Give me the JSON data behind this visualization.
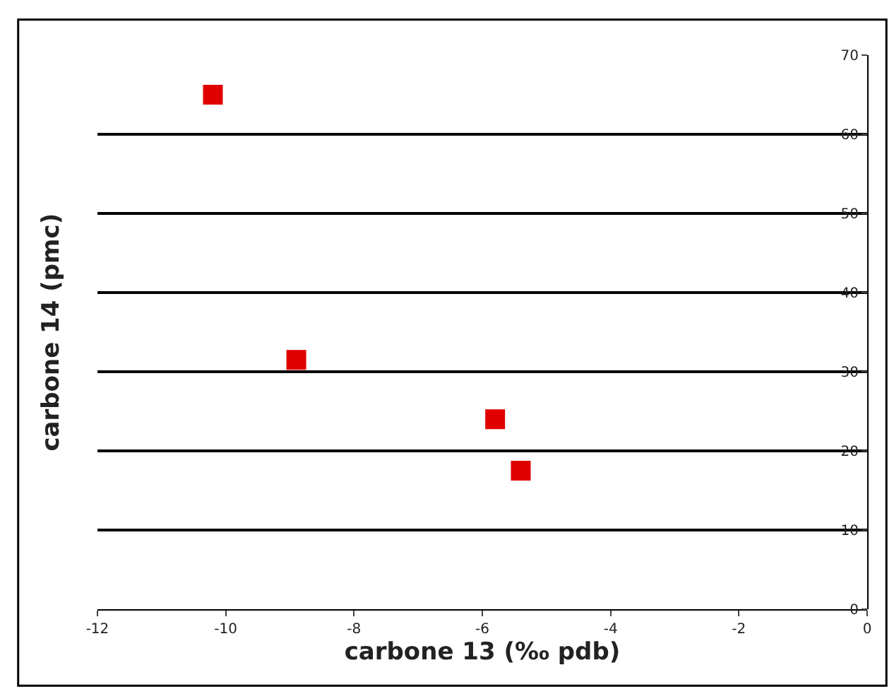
{
  "chart_data": {
    "type": "scatter",
    "xlabel": "carbone 13 (‰ pdb)",
    "ylabel": "carbone 14 (pmc)",
    "x": [
      -10.2,
      -8.9,
      -5.8,
      -5.4
    ],
    "series": [
      {
        "color": "#e00000",
        "values": [
          65,
          31.5,
          24,
          17.5
        ]
      }
    ],
    "xlim": [
      -12,
      0
    ],
    "xticks": [
      -12,
      -10,
      -8,
      -6,
      -4,
      -2,
      0
    ],
    "ylim": [
      0,
      70
    ],
    "yticks": [
      0,
      10,
      20,
      30,
      40,
      50,
      60,
      70
    ],
    "grid": "y",
    "marker": "square"
  }
}
